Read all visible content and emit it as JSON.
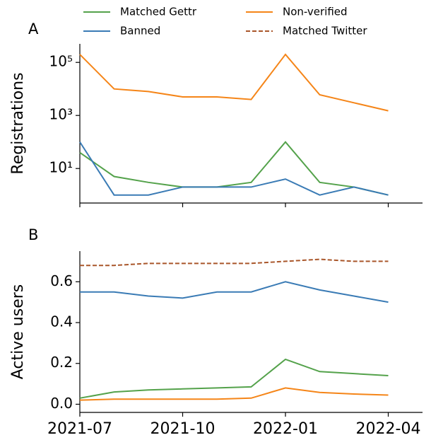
{
  "chart_data": [
    {
      "type": "line",
      "title": "A",
      "ylabel": "Registrations",
      "log_scale": true,
      "x": [
        "2021-07",
        "2021-08",
        "2021-09",
        "2021-10",
        "2021-11",
        "2021-12",
        "2022-01",
        "2022-02",
        "2022-03",
        "2022-04"
      ],
      "xlim": [
        "2021-07",
        "2022-05"
      ],
      "xticks": [
        "2021-07",
        "2021-10",
        "2022-01",
        "2022-04"
      ],
      "ylim": [
        0.5,
        500000
      ],
      "yticks": [
        {
          "value": 10,
          "label": "10¹"
        },
        {
          "value": 1000,
          "label": "10³"
        },
        {
          "value": 100000,
          "label": "10⁵"
        }
      ],
      "series": [
        {
          "color": "#f58518",
          "values": [
            200000,
            10000,
            8000,
            5000,
            5000,
            4000,
            200000,
            6000,
            3000,
            1500
          ]
        },
        {
          "color": "#54a24b",
          "values": [
            40,
            5,
            3,
            2,
            2,
            3,
            100,
            3,
            2,
            1
          ]
        },
        {
          "color": "#3a7bb5",
          "values": [
            100,
            1,
            1,
            2,
            2,
            2,
            4,
            1,
            2,
            1
          ]
        }
      ]
    },
    {
      "type": "line",
      "title": "B",
      "ylabel": "Active users",
      "x": [
        "2021-07",
        "2021-08",
        "2021-09",
        "2021-10",
        "2021-11",
        "2021-12",
        "2022-01",
        "2022-02",
        "2022-03",
        "2022-04"
      ],
      "xlim": [
        "2021-07",
        "2022-05"
      ],
      "xticks": [
        "2021-07",
        "2021-10",
        "2022-01",
        "2022-04"
      ],
      "ylim": [
        -0.04,
        0.75
      ],
      "yticks": [
        {
          "value": 0,
          "label": "0.0"
        },
        0.2,
        0.4,
        0.6
      ],
      "series": [
        {
          "name": "Matched Gettr",
          "color": "#54a24b",
          "values": [
            0.03,
            0.06,
            0.07,
            0.075,
            0.08,
            0.085,
            0.22,
            0.16,
            0.15,
            0.14
          ]
        },
        {
          "name": "Banned",
          "color": "#3a7bb5",
          "values": [
            0.55,
            0.55,
            0.53,
            0.52,
            0.55,
            0.55,
            0.6,
            0.56,
            0.53,
            0.5
          ]
        },
        {
          "name": "Non-verified",
          "color": "#f58518",
          "values": [
            0.02,
            0.025,
            0.025,
            0.025,
            0.025,
            0.03,
            0.08,
            0.058,
            0.05,
            0.045
          ]
        },
        {
          "name": "Matched Twitter",
          "color": "#a9562a",
          "linestyle": "dashed",
          "values": [
            0.68,
            0.68,
            0.69,
            0.69,
            0.69,
            0.69,
            0.7,
            0.71,
            0.7,
            0.7
          ]
        }
      ]
    }
  ]
}
